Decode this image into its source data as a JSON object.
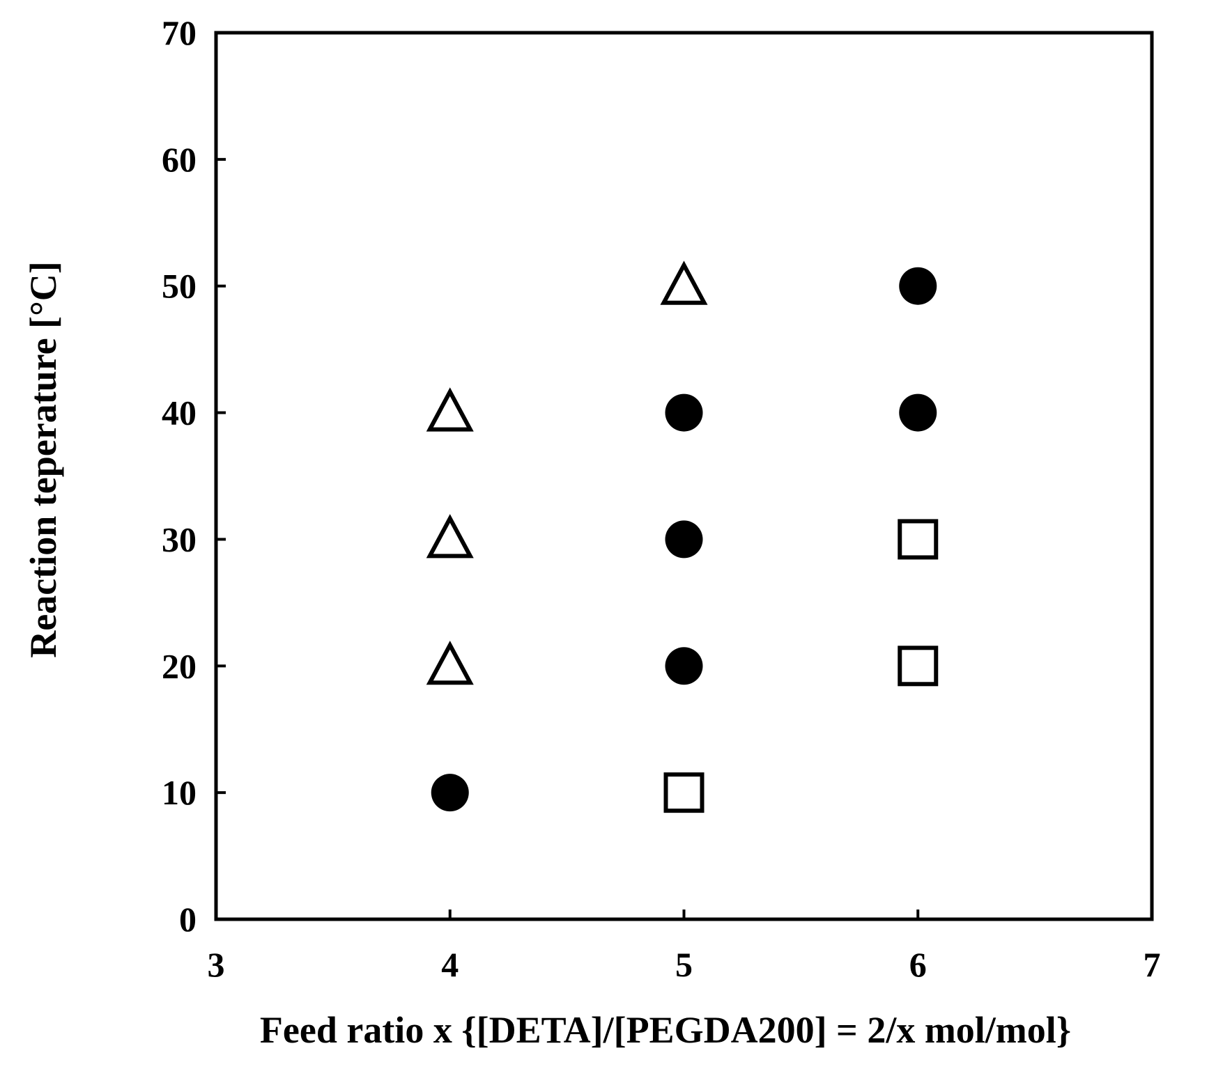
{
  "chart_data": {
    "type": "scatter",
    "title": "",
    "xlabel": "Feed ratio x {[DETA]/[PEGDA200] = 2/x mol/mol}",
    "ylabel": "Reaction teperature [°C]",
    "xlim": [
      3,
      7
    ],
    "ylim": [
      0,
      70
    ],
    "xticks": [
      3,
      4,
      5,
      6,
      7
    ],
    "yticks": [
      0,
      10,
      20,
      30,
      40,
      50,
      60,
      70
    ],
    "grid": false,
    "legend": "none",
    "series": [
      {
        "marker": "open-triangle",
        "color": "#000000",
        "points": [
          {
            "x": 4,
            "y": 20
          },
          {
            "x": 4,
            "y": 30
          },
          {
            "x": 4,
            "y": 40
          },
          {
            "x": 5,
            "y": 50
          }
        ]
      },
      {
        "marker": "filled-circle",
        "color": "#000000",
        "points": [
          {
            "x": 4,
            "y": 10
          },
          {
            "x": 5,
            "y": 20
          },
          {
            "x": 5,
            "y": 30
          },
          {
            "x": 5,
            "y": 40
          },
          {
            "x": 6,
            "y": 40
          },
          {
            "x": 6,
            "y": 50
          }
        ]
      },
      {
        "marker": "open-square",
        "color": "#000000",
        "points": [
          {
            "x": 5,
            "y": 10
          },
          {
            "x": 6,
            "y": 20
          },
          {
            "x": 6,
            "y": 30
          }
        ]
      }
    ]
  }
}
